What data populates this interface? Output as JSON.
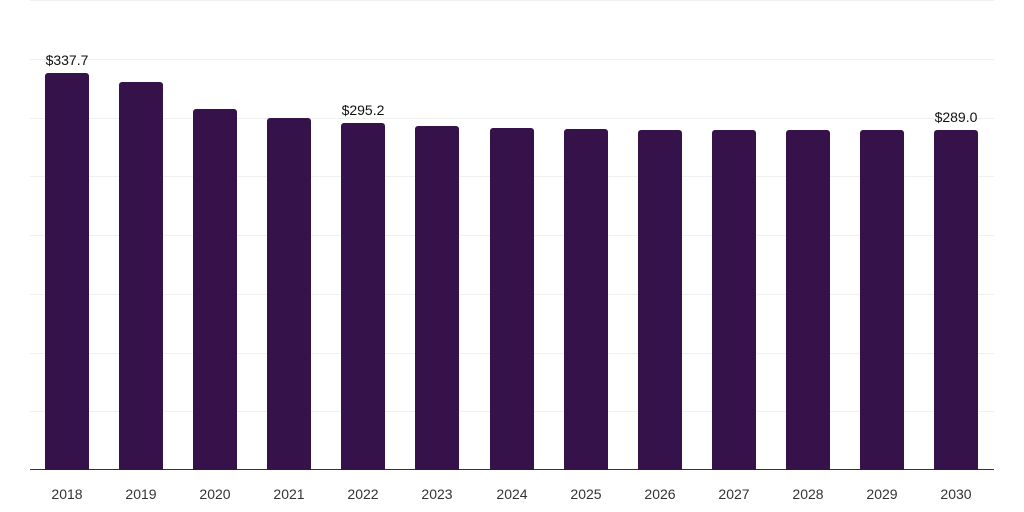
{
  "chart_data": {
    "type": "bar",
    "title": "",
    "xlabel": "",
    "ylabel": "",
    "categories": [
      "2018",
      "2019",
      "2020",
      "2021",
      "2022",
      "2023",
      "2024",
      "2025",
      "2026",
      "2027",
      "2028",
      "2029",
      "2030"
    ],
    "values": [
      337.7,
      330.0,
      307.0,
      299.3,
      295.2,
      292.5,
      290.8,
      290.0,
      289.2,
      289.1,
      289.1,
      289.0,
      289.0
    ],
    "data_labels": [
      {
        "category": "2018",
        "text": "$337.7"
      },
      {
        "category": "2022",
        "text": "$295.2"
      },
      {
        "category": "2030",
        "text": "$289.0"
      }
    ],
    "ylim": [
      0,
      400
    ],
    "grid": true,
    "gridline_values": [
      0,
      50,
      100,
      150,
      200,
      250,
      300,
      350,
      400
    ],
    "bar_color": "#36124a",
    "legend": null
  }
}
